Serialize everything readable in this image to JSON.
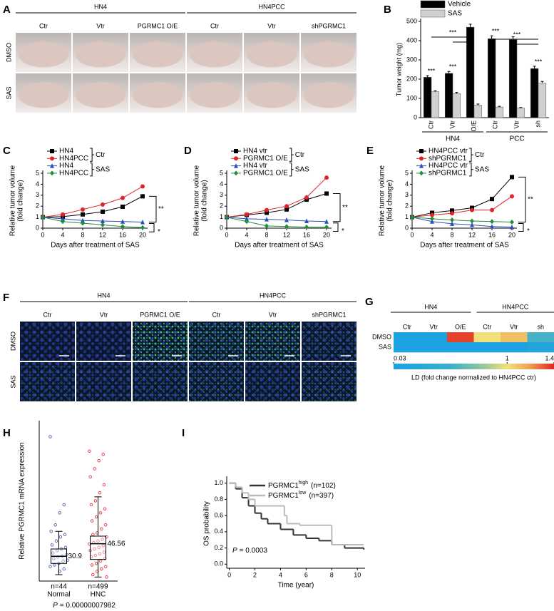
{
  "panel_labels": [
    "A",
    "B",
    "C",
    "D",
    "E",
    "F",
    "G",
    "H",
    "I"
  ],
  "panel_a": {
    "groups": [
      "HN4",
      "HN4PCC"
    ],
    "columns": [
      "Ctr",
      "Vtr",
      "PGRMC1 O/E",
      "Ctr",
      "Vtr",
      "shPGRMC1"
    ],
    "rows": [
      "DMSO",
      "SAS"
    ]
  },
  "panel_f": {
    "groups": [
      "HN4",
      "HN4PCC"
    ],
    "columns": [
      "Ctr",
      "Vtr",
      "PGRMC1 O/E",
      "Ctr",
      "Vtr",
      "shPGRMC1"
    ],
    "rows": [
      "DMSO",
      "SAS"
    ]
  },
  "chart_data": [
    {
      "type": "bar",
      "ylabel": "Tumor weight (mg)",
      "categories": [
        "Ctr",
        "Vtr",
        "O/E",
        "Ctr",
        "Vtr",
        "sh"
      ],
      "groups": [
        "HN4",
        "PCC"
      ],
      "series": [
        {
          "name": "Vehicle",
          "color": "#000000",
          "values": [
            210,
            230,
            470,
            410,
            405,
            255
          ],
          "errors": [
            8,
            10,
            15,
            15,
            15,
            12
          ]
        },
        {
          "name": "SAS",
          "color": "#d0d0d0",
          "values": [
            135,
            125,
            65,
            55,
            50,
            180
          ],
          "errors": [
            5,
            6,
            6,
            4,
            3,
            8
          ]
        }
      ],
      "ylim": [
        0,
        500
      ],
      "yticks": [
        0,
        100,
        200,
        300,
        400,
        500
      ],
      "annotations": [
        "***",
        "***",
        "***",
        "***",
        "***",
        "***"
      ]
    },
    {
      "type": "line",
      "ylabel": [
        "Relative tumor volume",
        "(fold change)"
      ],
      "xlabel": "Days after treatment of SAS",
      "x": [
        0,
        4,
        8,
        12,
        16,
        20
      ],
      "xlim": [
        0,
        21
      ],
      "xticks": [
        0,
        4,
        8,
        12,
        16,
        20
      ],
      "ylim": [
        0,
        5
      ],
      "yticks": [
        0,
        1,
        2,
        3,
        4,
        5
      ],
      "series": [
        {
          "name": "HN4",
          "color": "#000000",
          "marker": "square",
          "values": [
            1,
            1.05,
            1.25,
            1.5,
            1.95,
            2.9
          ]
        },
        {
          "name": "HN4PCC",
          "color": "#e0242b",
          "marker": "circle",
          "values": [
            1,
            1.25,
            1.7,
            2.15,
            2.75,
            3.8
          ]
        },
        {
          "name": "HN4",
          "color": "#2a4fbf",
          "marker": "triangle",
          "values": [
            1,
            0.85,
            0.7,
            0.65,
            0.6,
            0.55
          ]
        },
        {
          "name": "HN4PCC",
          "color": "#1f8f3a",
          "marker": "diamond",
          "values": [
            1,
            0.6,
            0.45,
            0.3,
            0.15,
            0.05
          ]
        }
      ],
      "legend_groups": [
        "Ctr",
        "SAS"
      ],
      "annotations": [
        "**",
        "*"
      ]
    },
    {
      "type": "line",
      "ylabel": [
        "Relative tumor volume",
        "(fold change)"
      ],
      "xlabel": "Days after treatment of SAS",
      "x": [
        0,
        4,
        8,
        12,
        16,
        20
      ],
      "xlim": [
        0,
        21
      ],
      "xticks": [
        0,
        4,
        8,
        12,
        16,
        20
      ],
      "ylim": [
        0,
        5
      ],
      "yticks": [
        0,
        1,
        2,
        3,
        4,
        5
      ],
      "series": [
        {
          "name": "HN4 vtr",
          "color": "#000000",
          "marker": "square",
          "values": [
            1,
            1.2,
            1.4,
            1.7,
            2.6,
            3.15
          ]
        },
        {
          "name": "PGRMC1 O/E",
          "color": "#e0242b",
          "marker": "circle",
          "values": [
            1,
            1.25,
            1.65,
            2,
            2.8,
            4.6
          ]
        },
        {
          "name": "HN4 vtr",
          "color": "#2a4fbf",
          "marker": "triangle",
          "values": [
            1,
            0.85,
            0.8,
            0.75,
            0.65,
            0.6
          ]
        },
        {
          "name": "PGRMC1 O/E",
          "color": "#1f8f3a",
          "marker": "diamond",
          "values": [
            1,
            0.6,
            0.2,
            0.15,
            0.1,
            0.1
          ]
        }
      ],
      "legend_groups": [
        "Ctr",
        "SAS"
      ],
      "annotations": [
        "**",
        "*"
      ]
    },
    {
      "type": "line",
      "ylabel": [
        "Relative tumor volume",
        "(fold change)"
      ],
      "xlabel": "Days after treatment of SAS",
      "x": [
        0,
        4,
        8,
        12,
        16,
        20
      ],
      "xlim": [
        0,
        21
      ],
      "xticks": [
        0,
        4,
        8,
        12,
        16,
        20
      ],
      "ylim": [
        0,
        5
      ],
      "yticks": [
        0,
        1,
        2,
        3,
        4,
        5
      ],
      "series": [
        {
          "name": "HN4PCC vtr",
          "color": "#000000",
          "marker": "square",
          "values": [
            1,
            1.4,
            1.6,
            1.85,
            2.65,
            4.65
          ]
        },
        {
          "name": "shPGRMC1",
          "color": "#e0242b",
          "marker": "circle",
          "values": [
            1,
            1.2,
            1.35,
            1.65,
            1.65,
            2.9
          ]
        },
        {
          "name": "HN4PCC vtr",
          "color": "#2a4fbf",
          "marker": "triangle",
          "values": [
            1,
            0.6,
            0.4,
            0.3,
            0.15,
            0.1
          ]
        },
        {
          "name": "shPGRMC1",
          "color": "#1f8f3a",
          "marker": "diamond",
          "values": [
            1,
            0.85,
            0.75,
            0.65,
            0.6,
            0.55
          ]
        }
      ],
      "legend_groups": [
        "Ctr",
        "SAS"
      ],
      "annotations": [
        "**",
        "*"
      ]
    },
    {
      "type": "heatmap",
      "groups": [
        "HN4",
        "HN4PCC"
      ],
      "columns": [
        "Ctr",
        "Vtr",
        "O/E",
        "Ctr",
        "Vtr",
        "sh"
      ],
      "rows": [
        "DMSO",
        "SAS"
      ],
      "values": [
        [
          0.05,
          0.05,
          1.35,
          1,
          1.1,
          0.55
        ],
        [
          0.05,
          0.05,
          0.05,
          0.05,
          0.05,
          0.15
        ]
      ],
      "zlim": [
        0.03,
        1.4
      ],
      "zticks": [
        0.03,
        1,
        1.4
      ],
      "colorbar_label": "LD (fold change normalized to HN4PCC ctr)"
    },
    {
      "type": "box",
      "ylabel": "Relative PGRMC1 mRNA expression",
      "categories": [
        "Normal",
        "HNC"
      ],
      "n_labels": [
        "n=44",
        "n=499"
      ],
      "ylim": [
        0,
        200
      ],
      "series": [
        {
          "color": "#3a4fa0",
          "median": 30.9,
          "q1": 22,
          "q3": 40,
          "whisker_low": 8,
          "whisker_high": 62,
          "points": [
            180,
            95,
            85,
            70,
            62,
            58,
            55,
            50,
            45,
            42,
            40,
            38,
            35,
            33,
            31,
            30,
            28,
            26,
            25,
            22,
            20,
            18,
            15,
            12
          ]
        },
        {
          "color": "#e0202a",
          "median": 46.56,
          "q1": 27,
          "q3": 56,
          "whisker_low": 5,
          "whisker_high": 105,
          "points": [
            162,
            158,
            150,
            140,
            130,
            120,
            110,
            100,
            95,
            90,
            85,
            80,
            75,
            70,
            65,
            60,
            58,
            55,
            52,
            50,
            48,
            46,
            44,
            42,
            40,
            38,
            36,
            34,
            32,
            30,
            28,
            25,
            22,
            20,
            18,
            15,
            12,
            8,
            5
          ]
        }
      ],
      "p_label": "P",
      "p_value": "= 0.00000007982"
    },
    {
      "type": "line",
      "step": true,
      "xlabel": "Time (year)",
      "ylabel": "OS probability",
      "xlim": [
        -0.2,
        10.6
      ],
      "xticks": [
        0,
        2,
        4,
        6,
        8,
        10
      ],
      "ylim": [
        -0.05,
        1.05
      ],
      "yticks": [
        {
          "value": 0,
          "label": "0.0"
        },
        0.2,
        0.4,
        0.6,
        0.8,
        {
          "value": 1,
          "label": "1.0"
        }
      ],
      "series": [
        {
          "name": "PGRMC1",
          "sup": "high",
          "count": "(n=102)",
          "color": "#333333",
          "x": [
            0,
            0.5,
            1,
            1.5,
            2,
            2.5,
            3,
            4,
            5,
            6,
            7,
            8,
            9,
            10.5
          ],
          "values": [
            1,
            0.93,
            0.82,
            0.72,
            0.63,
            0.56,
            0.5,
            0.43,
            0.36,
            0.32,
            0.29,
            0.24,
            0.2,
            0.18
          ]
        },
        {
          "name": "PGRMC1",
          "sup": "low",
          "count": "(n=397)",
          "color": "#bbbbbb",
          "x": [
            0,
            0.5,
            1,
            1.5,
            2,
            3,
            4.3,
            4.5,
            5.5,
            7.8,
            8,
            10.5
          ],
          "values": [
            1,
            0.95,
            0.88,
            0.8,
            0.72,
            0.72,
            0.6,
            0.5,
            0.48,
            0.48,
            0.24,
            0.24
          ]
        }
      ],
      "p_label": "P",
      "p_value": "= 0.0003"
    }
  ]
}
